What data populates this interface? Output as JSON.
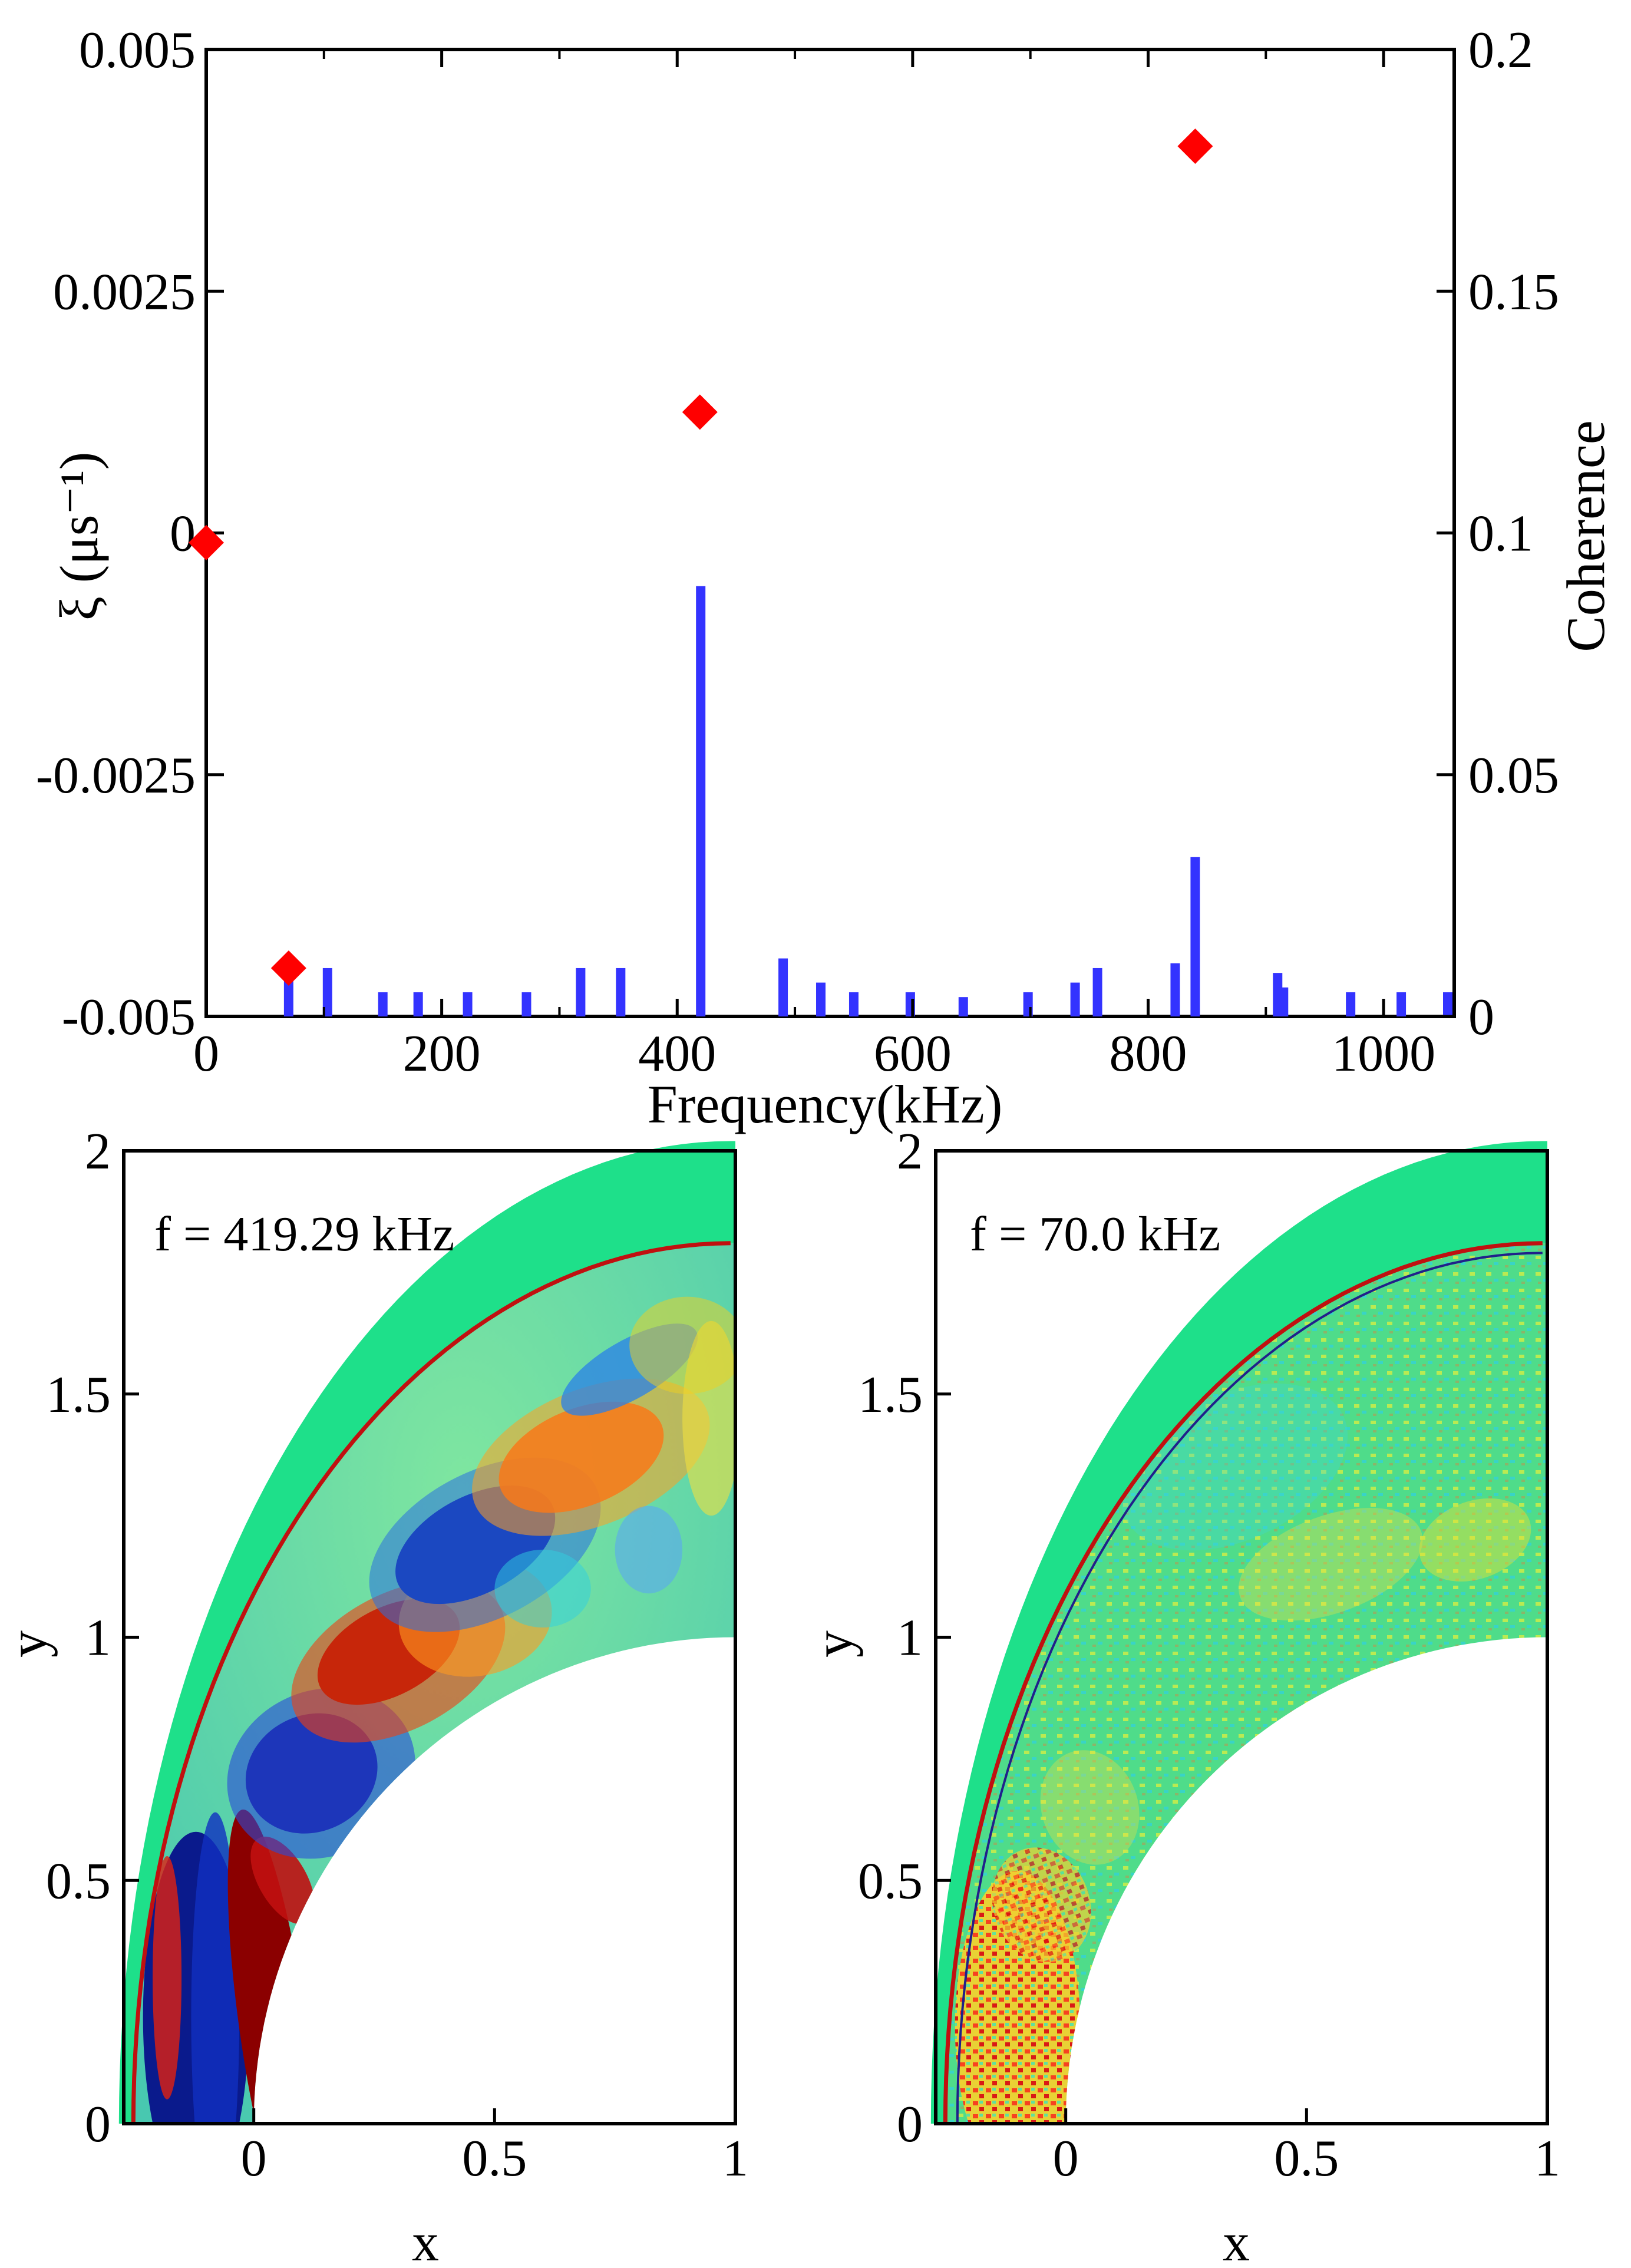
{
  "chart_data": [
    {
      "type": "bar+scatter",
      "title": "",
      "xlabel": "Frequency(kHz)",
      "ylabel_left": "ξ (μs⁻¹)",
      "ylabel_right": "Coherence",
      "xlim": [
        0,
        1060
      ],
      "ylim_left": [
        -0.005,
        0.005
      ],
      "ylim_right": [
        0,
        0.2
      ],
      "xticks": [
        "0",
        "200",
        "400",
        "600",
        "800",
        "1000"
      ],
      "xtick_values": [
        0,
        200,
        400,
        600,
        800,
        1000
      ],
      "yticks_left": [
        "-0.005",
        "-0.0025",
        "0",
        "0.0025",
        "0.005"
      ],
      "ytick_values_left": [
        -0.005,
        -0.0025,
        0,
        0.0025,
        0.005
      ],
      "yticks_right": [
        "0",
        "0.05",
        "0.1",
        "0.15",
        "0.2"
      ],
      "ytick_values_right": [
        0,
        0.05,
        0.1,
        0.15,
        0.2
      ],
      "series": [
        {
          "name": "Coherence",
          "kind": "bar",
          "axis": "right",
          "color": "#3333ff",
          "x": [
            70,
            103,
            150,
            180,
            222,
            272,
            318,
            352,
            420,
            490,
            522,
            550,
            598,
            643,
            698,
            738,
            757,
            823,
            840,
            910,
            915,
            972,
            1015,
            1060
          ],
          "values": [
            0.01,
            0.01,
            0.005,
            0.005,
            0.005,
            0.005,
            0.01,
            0.01,
            0.089,
            0.012,
            0.007,
            0.005,
            0.005,
            0.004,
            0.005,
            0.007,
            0.01,
            0.011,
            0.033,
            0.009,
            0.006,
            0.005,
            0.005,
            0.005
          ]
        },
        {
          "name": "ξ",
          "kind": "scatter",
          "axis": "left",
          "marker": "diamond",
          "color": "#ff0000",
          "x": [
            0,
            70,
            419.29,
            840
          ],
          "values": [
            -0.0001,
            -0.0045,
            0.00125,
            0.004
          ]
        }
      ]
    },
    {
      "type": "heatmap",
      "annotation": "f = 419.29 kHz",
      "xlabel": "x",
      "ylabel": "y",
      "xlim": [
        -0.27,
        1
      ],
      "ylim": [
        0,
        2
      ],
      "xticks": [
        "0",
        "0.5",
        "1"
      ],
      "xtick_values": [
        0,
        0.5,
        1
      ],
      "yticks": [
        "0",
        "0.5",
        "1",
        "1.5",
        "2"
      ],
      "ytick_values": [
        0,
        0.5,
        1,
        1.5,
        2
      ]
    },
    {
      "type": "heatmap",
      "annotation": "f = 70.0 kHz",
      "xlabel": "x",
      "ylabel": "y",
      "xlim": [
        -0.27,
        1
      ],
      "ylim": [
        0,
        2
      ],
      "xticks": [
        "0",
        "0.5",
        "1"
      ],
      "xtick_values": [
        0,
        0.5,
        1
      ],
      "yticks": [
        "0",
        "0.5",
        "1",
        "1.5",
        "2"
      ],
      "ytick_values": [
        0,
        0.5,
        1,
        1.5,
        2
      ]
    }
  ]
}
